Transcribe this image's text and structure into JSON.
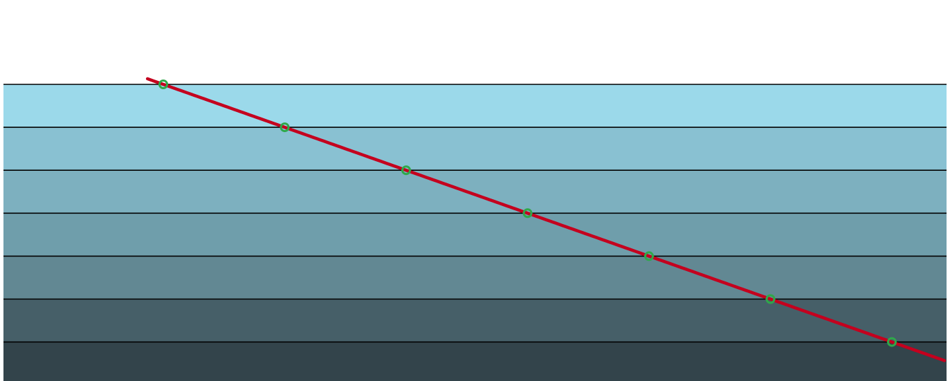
{
  "chart_data": {
    "type": "line",
    "title": "",
    "xlabel": "",
    "ylabel": "",
    "grid": false,
    "legend": "none",
    "bands": [
      {
        "color": "#9bd9ea"
      },
      {
        "color": "#89c1d2"
      },
      {
        "color": "#7db0bf"
      },
      {
        "color": "#6f9eab"
      },
      {
        "color": "#628893"
      },
      {
        "color": "#465f68"
      },
      {
        "color": "#33444b"
      }
    ],
    "band_edge_color": "#000000",
    "series": [
      {
        "color": "#c4001e",
        "marker_color": "#2fa84a",
        "points": [
          {
            "x": 1,
            "y": 7
          },
          {
            "x": 2,
            "y": 6
          },
          {
            "x": 4,
            "y": 5
          },
          {
            "x": 8,
            "y": 4
          },
          {
            "x": 16,
            "y": 3
          },
          {
            "x": 32,
            "y": 2
          },
          {
            "x": 64,
            "y": 1
          }
        ]
      }
    ]
  }
}
